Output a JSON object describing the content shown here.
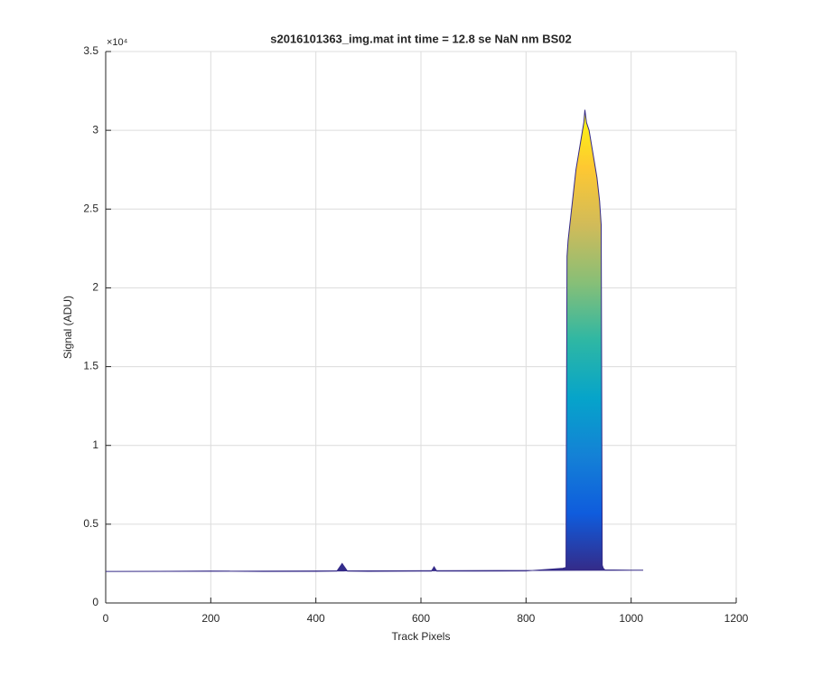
{
  "chart_data": {
    "type": "area",
    "title": "s2016101363_img.mat int time = 12.8 se  NaN nm BS02",
    "xlabel": "Track Pixels",
    "ylabel": "Signal (ADU)",
    "y_exponent": "×10⁴",
    "x": [
      0,
      100,
      200,
      300,
      400,
      440,
      450,
      460,
      500,
      600,
      620,
      625,
      630,
      700,
      800,
      850,
      870,
      876,
      878,
      880,
      885,
      890,
      895,
      900,
      905,
      910,
      912,
      915,
      920,
      925,
      930,
      935,
      940,
      943,
      945,
      947,
      950,
      1000,
      1023
    ],
    "values": [
      2000,
      2010,
      2020,
      2000,
      2010,
      2020,
      2500,
      2020,
      2010,
      2020,
      2020,
      2300,
      2020,
      2020,
      2030,
      2150,
      2200,
      2250,
      22000,
      23000,
      24500,
      26000,
      27500,
      28500,
      29500,
      30500,
      31300,
      30500,
      30000,
      29000,
      28000,
      27000,
      25500,
      24000,
      2400,
      2200,
      2100,
      2080,
      2080
    ],
    "color": "#352a87",
    "colormap": [
      "#352a87",
      "#0f5cdd",
      "#1481d6",
      "#06a4ca",
      "#2eb7a4",
      "#87bf77",
      "#d1bb59",
      "#fec832",
      "#f9fb0e"
    ],
    "xlim": [
      0,
      1200
    ],
    "xticks": [
      0,
      200,
      400,
      600,
      800,
      1000,
      1200
    ],
    "ylim": [
      0,
      35000
    ],
    "yticks": [
      0,
      {
        "value": 5000,
        "label": "0.5"
      },
      {
        "value": 10000,
        "label": "1"
      },
      {
        "value": 15000,
        "label": "1.5"
      },
      {
        "value": 20000,
        "label": "2"
      },
      {
        "value": 25000,
        "label": "2.5"
      },
      {
        "value": 30000,
        "label": "3"
      },
      {
        "value": 35000,
        "label": "3.5"
      }
    ],
    "grid": true
  }
}
